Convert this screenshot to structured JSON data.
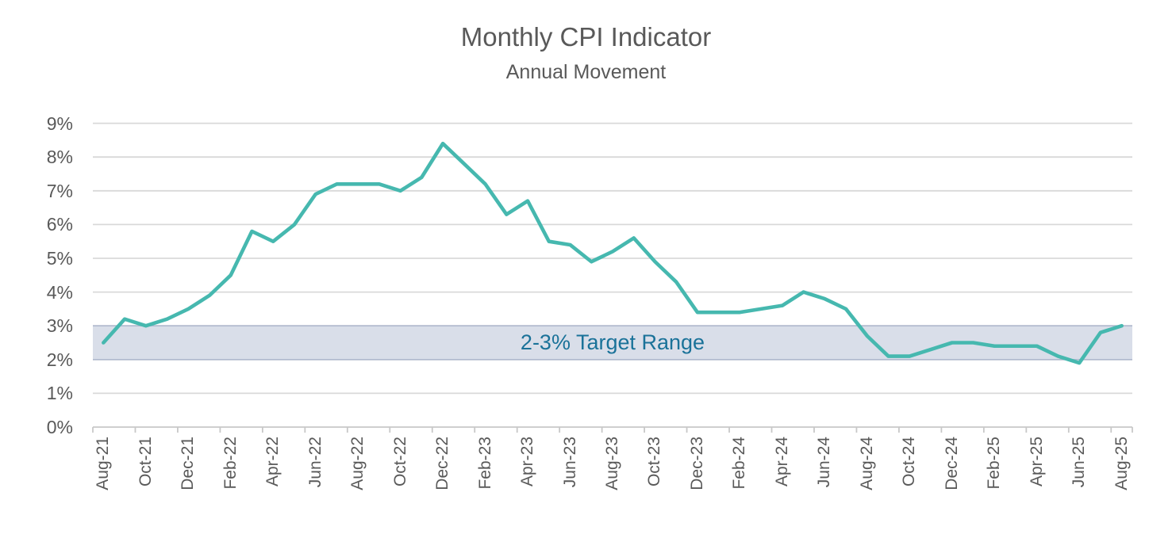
{
  "header": {
    "title": "Monthly CPI Indicator",
    "subtitle": "Annual Movement"
  },
  "band": {
    "label": "2-3% Target Range",
    "from": 2,
    "to": 3,
    "fill": "#d9dee9",
    "edge": "#b1bacf",
    "label_color": "#1a7299"
  },
  "chart_data": {
    "type": "line",
    "title": "Monthly CPI Indicator",
    "subtitle": "Annual Movement",
    "x": [
      "Aug-21",
      "Sep-21",
      "Oct-21",
      "Nov-21",
      "Dec-21",
      "Jan-22",
      "Feb-22",
      "Mar-22",
      "Apr-22",
      "May-22",
      "Jun-22",
      "Jul-22",
      "Aug-22",
      "Sep-22",
      "Oct-22",
      "Nov-22",
      "Dec-22",
      "Jan-23",
      "Feb-23",
      "Mar-23",
      "Apr-23",
      "May-23",
      "Jun-23",
      "Jul-23",
      "Aug-23",
      "Sep-23",
      "Oct-23",
      "Nov-23",
      "Dec-23",
      "Jan-24",
      "Feb-24",
      "Mar-24",
      "Apr-24",
      "May-24",
      "Jun-24",
      "Jul-24",
      "Aug-24",
      "Sep-24",
      "Oct-24",
      "Nov-24",
      "Dec-24",
      "Jan-25",
      "Feb-25",
      "Mar-25",
      "Apr-25",
      "May-25",
      "Jun-25",
      "Jul-25",
      "Aug-25"
    ],
    "values": [
      2.5,
      3.2,
      3.0,
      3.2,
      3.5,
      3.9,
      4.5,
      5.8,
      5.5,
      6.0,
      6.9,
      7.2,
      7.2,
      7.2,
      7.0,
      7.4,
      8.4,
      7.8,
      7.2,
      6.3,
      6.7,
      5.5,
      5.4,
      4.9,
      5.2,
      5.6,
      4.9,
      4.3,
      3.4,
      3.4,
      3.4,
      3.5,
      3.6,
      4.0,
      3.8,
      3.5,
      2.7,
      2.1,
      2.1,
      2.3,
      2.5,
      2.5,
      2.4,
      2.4,
      2.4,
      2.1,
      1.9,
      2.8,
      3.0
    ],
    "x_tick_labels": [
      "Aug-21",
      "Oct-21",
      "Dec-21",
      "Feb-22",
      "Apr-22",
      "Jun-22",
      "Aug-22",
      "Oct-22",
      "Dec-22",
      "Feb-23",
      "Apr-23",
      "Jun-23",
      "Aug-23",
      "Oct-23",
      "Dec-23",
      "Feb-24",
      "Apr-24",
      "Jun-24",
      "Aug-24",
      "Oct-24",
      "Dec-24",
      "Feb-25",
      "Apr-25",
      "Jun-25",
      "Aug-25"
    ],
    "label_every": 2,
    "y_tick_labels": [
      "0%",
      "1%",
      "2%",
      "3%",
      "4%",
      "5%",
      "6%",
      "7%",
      "8%",
      "9%"
    ],
    "ylim": [
      0,
      9
    ],
    "grid": true,
    "legend": "none",
    "annotation": "2-3% Target Range",
    "line_color": "#46b8af",
    "gridline_color": "#d9d9d9",
    "axis_color": "#c8c8c8",
    "axis_text_color": "#595959"
  }
}
